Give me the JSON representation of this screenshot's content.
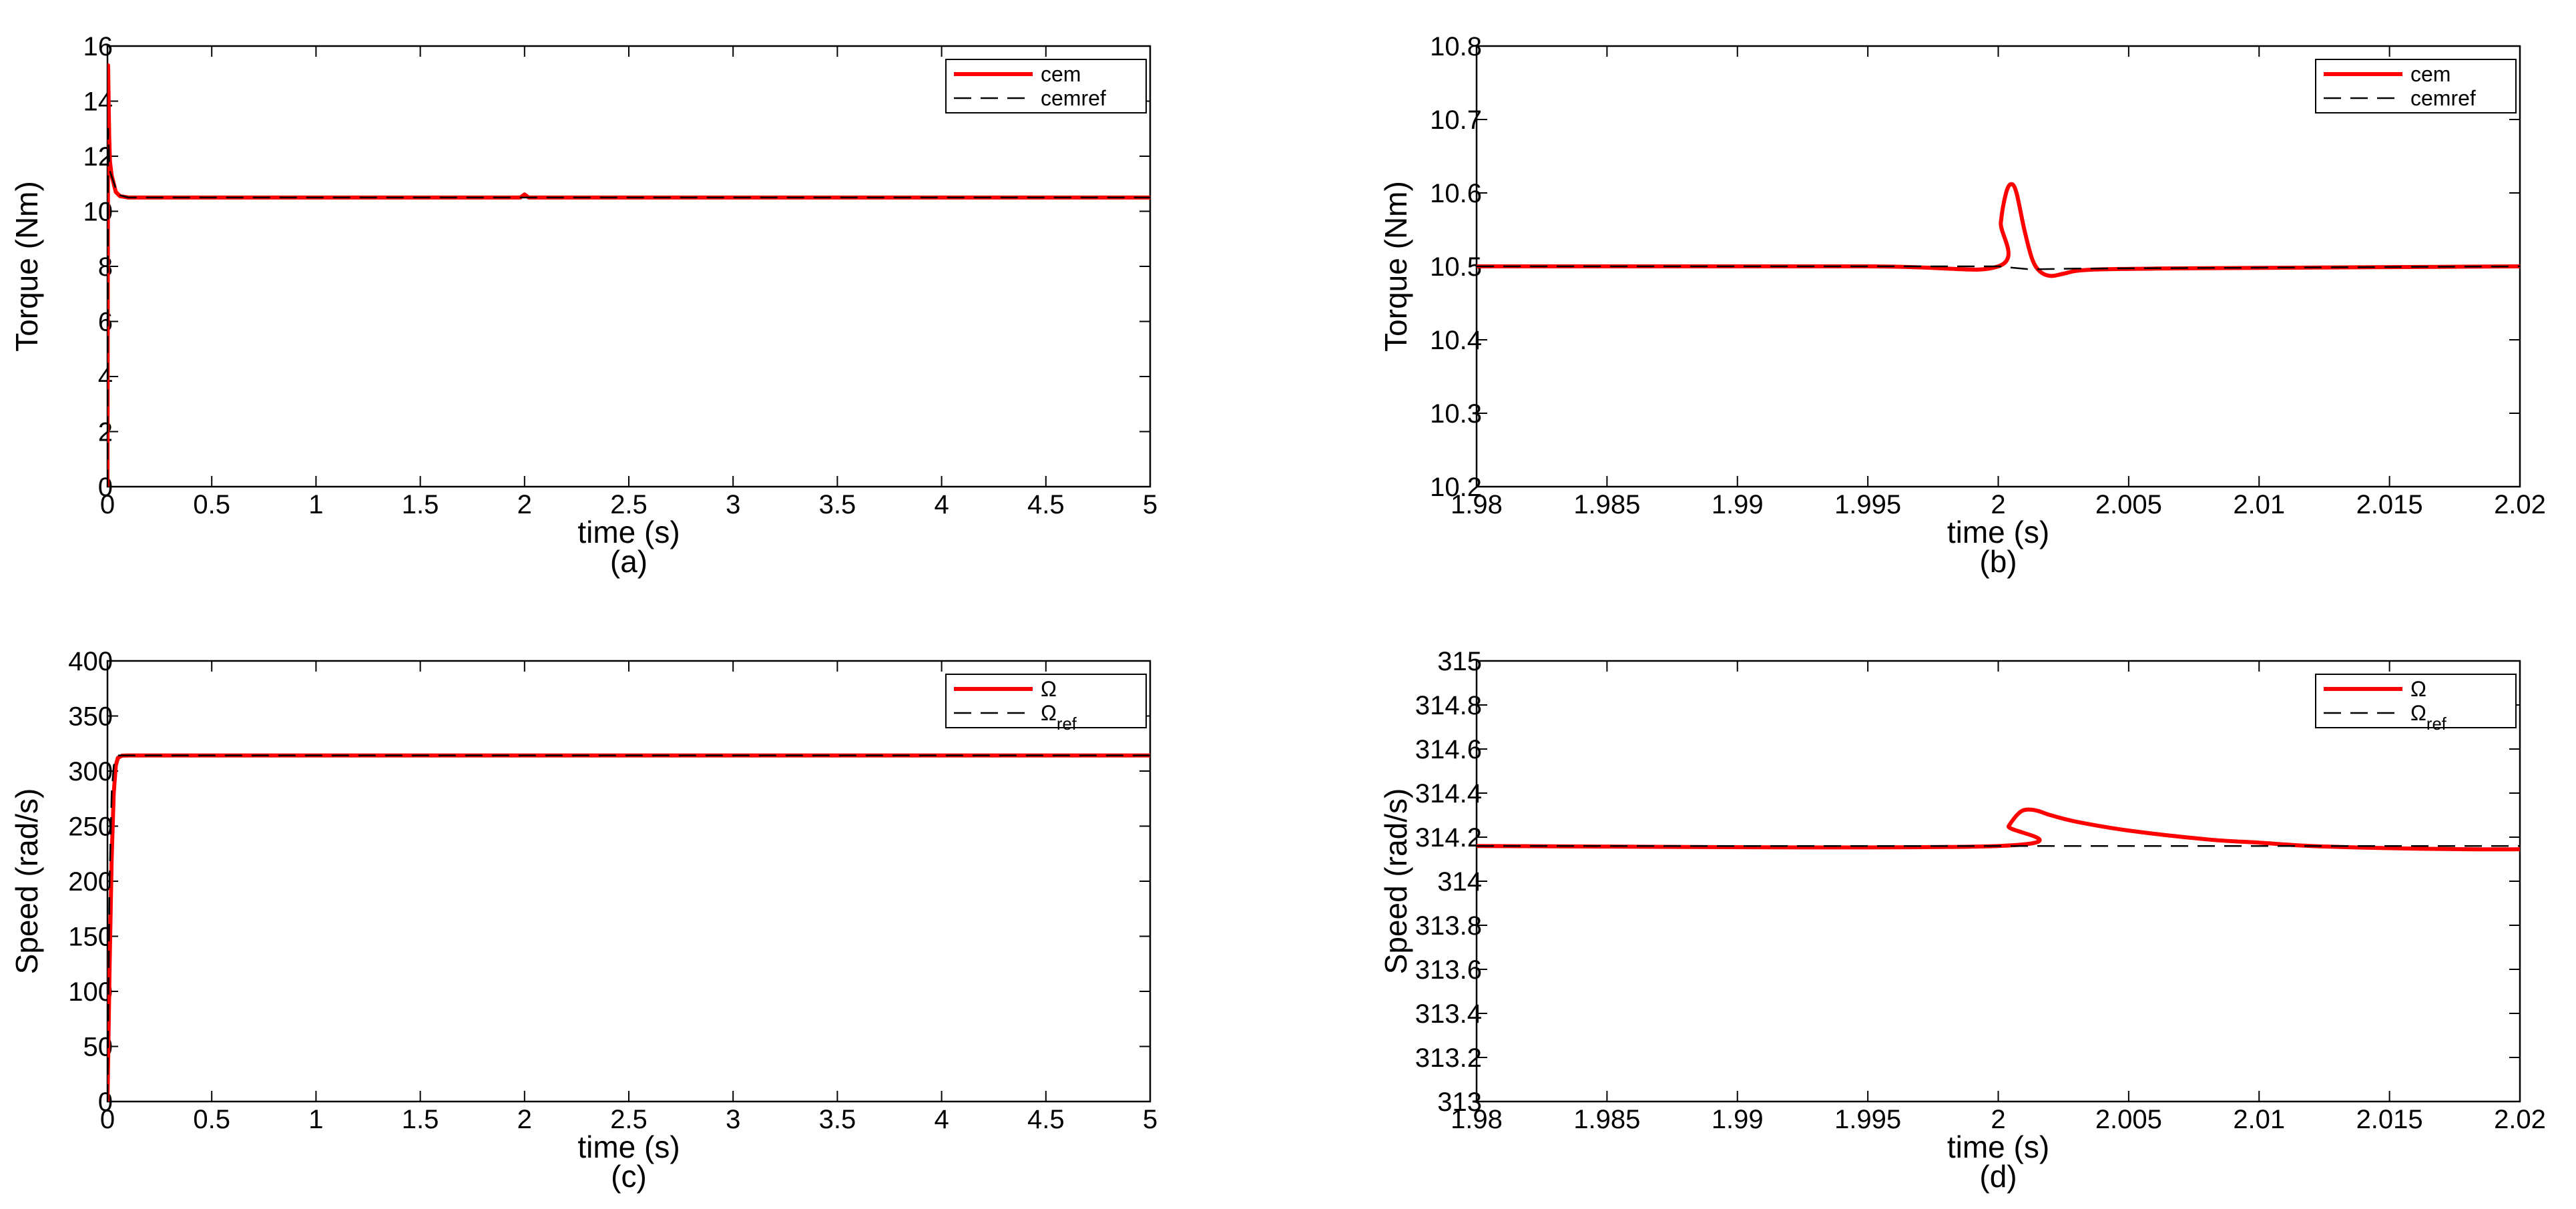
{
  "chart_data": [
    {
      "type": "line",
      "caption": "(a)",
      "xlabel": "time (s)",
      "ylabel": "Torque (Nm)",
      "xlim": [
        0,
        5
      ],
      "ylim": [
        0,
        16
      ],
      "xticks": [
        0,
        0.5,
        1,
        1.5,
        2,
        2.5,
        3,
        3.5,
        4,
        4.5,
        5
      ],
      "xtick_labels": [
        "0",
        "0.5",
        "1",
        "1.5",
        "2",
        "2.5",
        "3",
        "3.5",
        "4",
        "4.5",
        "5"
      ],
      "yticks": [
        0,
        2,
        4,
        6,
        8,
        10,
        12,
        14,
        16
      ],
      "ytick_labels": [
        "0",
        "2",
        "4",
        "6",
        "8",
        "10",
        "12",
        "14",
        "16"
      ],
      "grid": false,
      "legend_position": "top-right",
      "series": [
        {
          "name": "cem",
          "color": "#ff0000",
          "style": "solid",
          "x": [
            0,
            0.003,
            0.008,
            0.012,
            0.02,
            0.04,
            0.06,
            0.1,
            0.5,
            1,
            1.5,
            1.98,
            2.0,
            2.02,
            2.5,
            3,
            3.5,
            4,
            4.5,
            5
          ],
          "y": [
            0,
            15.3,
            12.8,
            11.8,
            11.3,
            10.7,
            10.55,
            10.5,
            10.5,
            10.5,
            10.5,
            10.5,
            10.61,
            10.5,
            10.5,
            10.5,
            10.5,
            10.5,
            10.5,
            10.5
          ]
        },
        {
          "name": "cemref",
          "color": "#000000",
          "style": "dashed",
          "x": [
            0,
            0.003,
            0.01,
            0.05,
            0.1,
            5
          ],
          "y": [
            0,
            13,
            11.5,
            10.6,
            10.5,
            10.5
          ]
        }
      ]
    },
    {
      "type": "line",
      "caption": "(b)",
      "xlabel": "time (s)",
      "ylabel": "Torque (Nm)",
      "xlim": [
        1.98,
        2.02
      ],
      "ylim": [
        10.2,
        10.8
      ],
      "xticks": [
        1.98,
        1.985,
        1.99,
        1.995,
        2,
        2.005,
        2.01,
        2.015,
        2.02
      ],
      "xtick_labels": [
        "1.98",
        "1.985",
        "1.99",
        "1.995",
        "2",
        "2.005",
        "2.01",
        "2.015",
        "2.02"
      ],
      "yticks": [
        10.2,
        10.3,
        10.4,
        10.5,
        10.6,
        10.7,
        10.8
      ],
      "ytick_labels": [
        "10.2",
        "10.3",
        "10.4",
        "10.5",
        "10.6",
        "10.7",
        "10.8"
      ],
      "grid": false,
      "legend_position": "top-right",
      "series": [
        {
          "name": "cem",
          "color": "#ff0000",
          "style": "solid",
          "x": [
            1.98,
            1.995,
            2.0,
            2.0001,
            2.0003,
            2.0005,
            2.0007,
            2.001,
            2.0013,
            2.0016,
            2.002,
            2.0025,
            2.003,
            2.004,
            2.006,
            2.01,
            2.015,
            2.02
          ],
          "y": [
            10.5,
            10.5,
            10.5,
            10.56,
            10.6,
            10.612,
            10.6,
            10.55,
            10.51,
            10.493,
            10.487,
            10.49,
            10.494,
            10.496,
            10.497,
            10.498,
            10.499,
            10.5
          ],
          "smooth": true
        },
        {
          "name": "cemref",
          "color": "#000000",
          "style": "dashed",
          "x": [
            1.98,
            2.0,
            2.0012,
            2.003,
            2.02
          ],
          "y": [
            10.5,
            10.5,
            10.496,
            10.497,
            10.5
          ]
        }
      ]
    },
    {
      "type": "line",
      "caption": "(c)",
      "xlabel": "time (s)",
      "ylabel": "Speed (rad/s)",
      "xlim": [
        0,
        5
      ],
      "ylim": [
        0,
        400
      ],
      "xticks": [
        0,
        0.5,
        1,
        1.5,
        2,
        2.5,
        3,
        3.5,
        4,
        4.5,
        5
      ],
      "xtick_labels": [
        "0",
        "0.5",
        "1",
        "1.5",
        "2",
        "2.5",
        "3",
        "3.5",
        "4",
        "4.5",
        "5"
      ],
      "yticks": [
        0,
        50,
        100,
        150,
        200,
        250,
        300,
        350,
        400
      ],
      "ytick_labels": [
        "0",
        "50",
        "100",
        "150",
        "200",
        "250",
        "300",
        "350",
        "400"
      ],
      "grid": false,
      "legend_position": "top-right",
      "series": [
        {
          "name": "Ω",
          "color": "#ff0000",
          "style": "solid",
          "x": [
            0,
            0.005,
            0.01,
            0.02,
            0.03,
            0.04,
            0.05,
            0.07,
            0.1,
            5
          ],
          "y": [
            0,
            60,
            120,
            220,
            280,
            305,
            312,
            314,
            314.16,
            314.16
          ]
        },
        {
          "name": "Ω_ref",
          "color": "#000000",
          "style": "dashed",
          "x": [
            0,
            0.01,
            0.02,
            0.03,
            0.05,
            5
          ],
          "y": [
            0,
            200,
            280,
            305,
            314.16,
            314.16
          ]
        }
      ]
    },
    {
      "type": "line",
      "caption": "(d)",
      "xlabel": "time (s)",
      "ylabel": "Speed (rad/s)",
      "xlim": [
        1.98,
        2.02
      ],
      "ylim": [
        313,
        315
      ],
      "xticks": [
        1.98,
        1.985,
        1.99,
        1.995,
        2,
        2.005,
        2.01,
        2.015,
        2.02
      ],
      "xtick_labels": [
        "1.98",
        "1.985",
        "1.99",
        "1.995",
        "2",
        "2.005",
        "2.01",
        "2.015",
        "2.02"
      ],
      "yticks": [
        313,
        313.2,
        313.4,
        313.6,
        313.8,
        314,
        314.2,
        314.4,
        314.6,
        314.8,
        315
      ],
      "ytick_labels": [
        "313",
        "313.2",
        "313.4",
        "313.6",
        "313.8",
        "314",
        "314.2",
        "314.4",
        "314.6",
        "314.8",
        "315"
      ],
      "grid": false,
      "legend_position": "top-right",
      "series": [
        {
          "name": "Ω",
          "color": "#ff0000",
          "style": "solid",
          "x": [
            1.98,
            2.0,
            2.0004,
            2.0008,
            2.0011,
            2.0015,
            2.002,
            2.003,
            2.005,
            2.008,
            2.01,
            2.012,
            2.015,
            2.018,
            2.02
          ],
          "y": [
            314.16,
            314.16,
            314.25,
            314.31,
            314.325,
            314.32,
            314.3,
            314.27,
            314.23,
            314.19,
            314.175,
            314.16,
            314.15,
            314.145,
            314.145
          ],
          "smooth": true
        },
        {
          "name": "Ω_ref",
          "color": "#000000",
          "style": "dashed",
          "x": [
            1.98,
            2.02
          ],
          "y": [
            314.16,
            314.16
          ]
        }
      ]
    }
  ]
}
